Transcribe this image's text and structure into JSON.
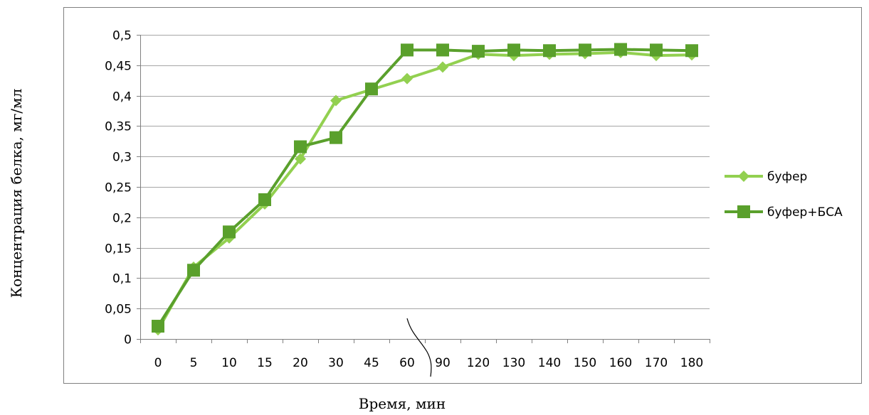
{
  "chart_data": {
    "type": "line",
    "title": "",
    "xlabel": "Время, мин",
    "ylabel": "Концентрация белка, мг/мл",
    "categories": [
      "0",
      "5",
      "10",
      "15",
      "20",
      "30",
      "45",
      "60",
      "90",
      "120",
      "130",
      "140",
      "150",
      "160",
      "170",
      "180"
    ],
    "ylim": [
      0,
      0.5
    ],
    "yticks": [
      "0",
      "0,05",
      "0,1",
      "0,15",
      "0,2",
      "0,25",
      "0,3",
      "0,35",
      "0,4",
      "0,45",
      "0,5"
    ],
    "grid": true,
    "legend_position": "right",
    "axis_break_after": "60",
    "series": [
      {
        "name": "буфер",
        "marker": "diamond",
        "color": "#92d050",
        "values": [
          0.015,
          0.118,
          0.166,
          0.222,
          0.296,
          0.392,
          0.41,
          0.428,
          0.447,
          0.468,
          0.466,
          0.468,
          0.469,
          0.471,
          0.466,
          0.467
        ]
      },
      {
        "name": "буфер+БСА",
        "marker": "square",
        "color": "#5aa02c",
        "values": [
          0.021,
          0.113,
          0.176,
          0.229,
          0.316,
          0.331,
          0.411,
          0.475,
          0.475,
          0.473,
          0.475,
          0.474,
          0.475,
          0.476,
          0.475,
          0.474
        ]
      }
    ]
  }
}
